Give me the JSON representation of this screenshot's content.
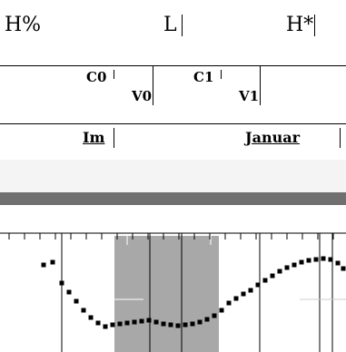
{
  "tones_tier": {
    "labels": [
      "H%",
      "L",
      "H*"
    ]
  },
  "breaks_tier": {
    "labels": [
      "C0",
      "V0",
      "C1",
      "V1"
    ]
  },
  "words_tier": {
    "labels": [
      "Im",
      "Januar"
    ]
  },
  "colors": {
    "selection": "#a8a8a8",
    "divider_bar": "#707070",
    "faint_band": "#f0f0f0",
    "pitch_points": "#000000"
  },
  "pitch_contour": {
    "note": "",
    "selection_fraction": [
      0.33,
      0.64
    ]
  }
}
